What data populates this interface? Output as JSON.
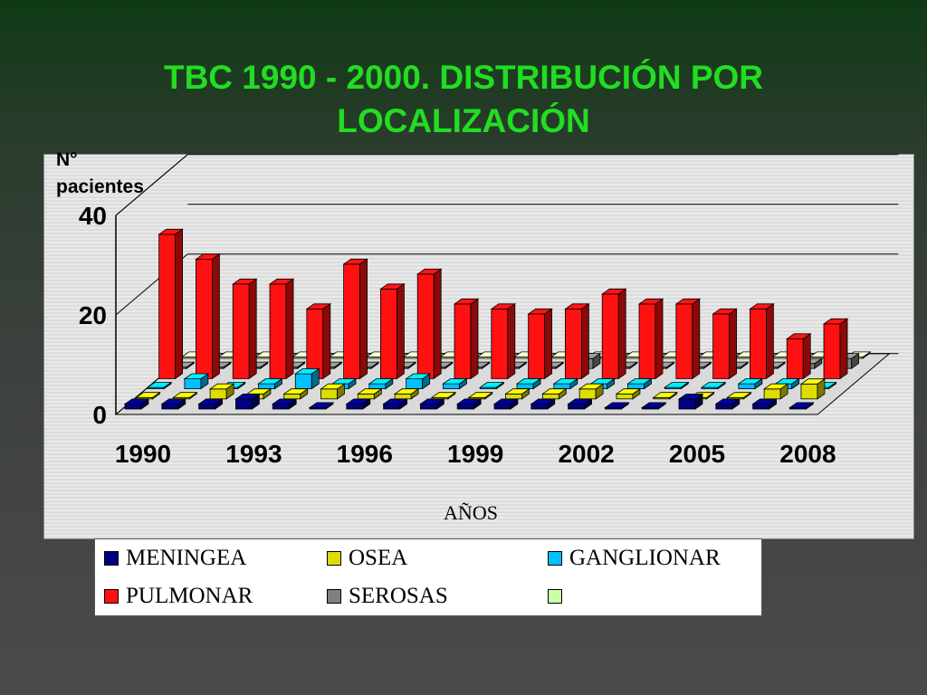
{
  "title_lines": [
    "TBC 1990 - 2000. DISTRIBUCIÓN POR",
    "LOCALIZACIÓN"
  ],
  "chart_data": {
    "type": "bar",
    "title": "TBC 1990 - 2000. DISTRIBUCIÓN POR LOCALIZACIÓN",
    "xlabel": "AÑOS",
    "ylabel_lines": [
      "N°",
      "pacientes"
    ],
    "ylim": [
      0,
      40
    ],
    "yticks": [
      0,
      20,
      40
    ],
    "categories": [
      "1990",
      "1991",
      "1992",
      "1993",
      "1994",
      "1995",
      "1996",
      "1997",
      "1998",
      "1999",
      "2000",
      "2001",
      "2002",
      "2003",
      "2004",
      "2005",
      "2006",
      "2007",
      "2008"
    ],
    "xtick_labels": [
      "1990",
      "1993",
      "1996",
      "1999",
      "2002",
      "2005",
      "2008"
    ],
    "grid": true,
    "legend_position": "bottom",
    "series": [
      {
        "name": "MENINGEA",
        "color": "#000080",
        "values": [
          1,
          1,
          1,
          2,
          1,
          0,
          1,
          1,
          1,
          1,
          1,
          1,
          1,
          0,
          0,
          2,
          1,
          1,
          0
        ]
      },
      {
        "name": "OSEA",
        "color": "#dddd00",
        "values": [
          0,
          0,
          2,
          1,
          1,
          2,
          1,
          1,
          0,
          0,
          1,
          1,
          2,
          1,
          0,
          0,
          0,
          2,
          3
        ]
      },
      {
        "name": "GANGLIONAR",
        "color": "#00c0ff",
        "values": [
          0,
          2,
          0,
          1,
          3,
          1,
          1,
          2,
          1,
          0,
          1,
          1,
          1,
          1,
          0,
          0,
          1,
          1,
          0
        ]
      },
      {
        "name": "PULMONAR",
        "color": "#ff1111",
        "values": [
          29,
          24,
          19,
          19,
          14,
          23,
          18,
          21,
          15,
          14,
          13,
          14,
          17,
          15,
          15,
          13,
          14,
          8,
          11
        ]
      },
      {
        "name": "SEROSAS",
        "color": "#808080",
        "values": [
          0,
          0,
          0,
          0,
          0,
          0,
          0,
          0,
          0,
          0,
          0,
          2,
          0,
          0,
          0,
          0,
          0,
          1,
          2
        ]
      },
      {
        "name": "",
        "color": "#ccffaa",
        "values": [
          0,
          0,
          0,
          0,
          0,
          0,
          0,
          0,
          0,
          0,
          0,
          0,
          0,
          0,
          0,
          0,
          0,
          0,
          0
        ]
      }
    ]
  }
}
